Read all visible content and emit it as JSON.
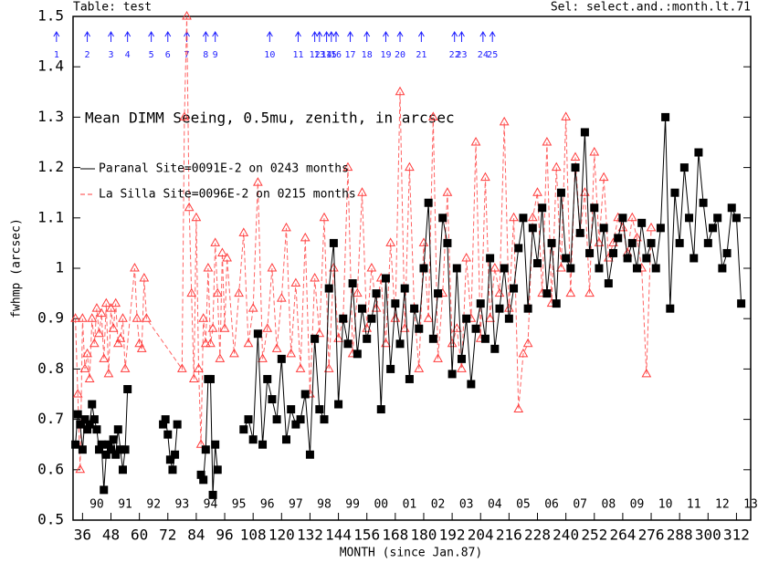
{
  "header": {
    "table": "Table: test",
    "selection": "Sel: select.and.:month.lt.71"
  },
  "chart_data": {
    "type": "line",
    "title": "Mean DIMM Seeing, 0.5mu, zenith, in arcsec",
    "x_label": "MONTH (since Jan.87)",
    "y_label": "fwhmp (arcsec)",
    "xlim": [
      32,
      318
    ],
    "ylim": [
      0.5,
      1.5
    ],
    "xticks": [
      36,
      48,
      60,
      72,
      84,
      96,
      108,
      120,
      132,
      144,
      156,
      168,
      180,
      192,
      204,
      216,
      228,
      240,
      252,
      264,
      276,
      288,
      300,
      312
    ],
    "yticks": [
      0.5,
      0.6,
      0.7,
      0.8,
      0.9,
      1,
      1.1,
      1.2,
      1.3,
      1.4,
      1.5
    ],
    "x2ticks": [
      {
        "value": 42,
        "label": "90"
      },
      {
        "value": 54,
        "label": "91"
      },
      {
        "value": 66,
        "label": "92"
      },
      {
        "value": 78,
        "label": "93"
      },
      {
        "value": 90,
        "label": "94"
      },
      {
        "value": 102,
        "label": "95"
      },
      {
        "value": 114,
        "label": "96"
      },
      {
        "value": 126,
        "label": "97"
      },
      {
        "value": 138,
        "label": "98"
      },
      {
        "value": 150,
        "label": "99"
      },
      {
        "value": 162,
        "label": "00"
      },
      {
        "value": 174,
        "label": "01"
      },
      {
        "value": 186,
        "label": "02"
      },
      {
        "value": 198,
        "label": "03"
      },
      {
        "value": 210,
        "label": "04"
      },
      {
        "value": 222,
        "label": "05"
      },
      {
        "value": 234,
        "label": "06"
      },
      {
        "value": 246,
        "label": "07"
      },
      {
        "value": 258,
        "label": "08"
      },
      {
        "value": 270,
        "label": "09"
      },
      {
        "value": 282,
        "label": "10"
      },
      {
        "value": 294,
        "label": "11"
      },
      {
        "value": 306,
        "label": "12"
      },
      {
        "value": 318,
        "label": "13"
      }
    ],
    "events": [
      {
        "label": "1",
        "x": 25
      },
      {
        "label": "2",
        "x": 38
      },
      {
        "label": "3",
        "x": 48
      },
      {
        "label": "4",
        "x": 55
      },
      {
        "label": "5",
        "x": 65
      },
      {
        "label": "6",
        "x": 72
      },
      {
        "label": "7",
        "x": 80
      },
      {
        "label": "8",
        "x": 88
      },
      {
        "label": "9",
        "x": 92
      },
      {
        "label": "10",
        "x": 115
      },
      {
        "label": "11",
        "x": 127
      },
      {
        "label": "12",
        "x": 134
      },
      {
        "label": "13",
        "x": 136
      },
      {
        "label": "14",
        "x": 139
      },
      {
        "label": "15",
        "x": 141
      },
      {
        "label": "16",
        "x": 143
      },
      {
        "label": "17",
        "x": 149
      },
      {
        "label": "18",
        "x": 156
      },
      {
        "label": "19",
        "x": 164
      },
      {
        "label": "20",
        "x": 170
      },
      {
        "label": "21",
        "x": 179
      },
      {
        "label": "22",
        "x": 193
      },
      {
        "label": "23",
        "x": 196
      },
      {
        "label": "24",
        "x": 205
      },
      {
        "label": "25",
        "x": 209
      }
    ],
    "series": [
      {
        "name": "Paranal Site=0091E-2 on 0243 months",
        "color": "#000000",
        "marker": "square",
        "dashed": false,
        "x": [
          33,
          34,
          35,
          36,
          37,
          38,
          39,
          40,
          41,
          42,
          43,
          44,
          45,
          46,
          47,
          48,
          49,
          50,
          51,
          52,
          53,
          54,
          55,
          60,
          70,
          71,
          72,
          73,
          74,
          75,
          76,
          80,
          86,
          87,
          88,
          89,
          90,
          91,
          92,
          93,
          98,
          104,
          106,
          108,
          110,
          112,
          114,
          116,
          118,
          120,
          122,
          124,
          126,
          128,
          130,
          132,
          134,
          136,
          138,
          140,
          142,
          144,
          146,
          148,
          150,
          152,
          154,
          156,
          158,
          160,
          162,
          164,
          166,
          168,
          170,
          172,
          174,
          176,
          178,
          180,
          182,
          184,
          186,
          188,
          190,
          192,
          194,
          196,
          198,
          200,
          202,
          204,
          206,
          208,
          210,
          212,
          214,
          216,
          218,
          220,
          222,
          224,
          226,
          228,
          230,
          232,
          234,
          236,
          238,
          240,
          242,
          244,
          246,
          248,
          250,
          252,
          254,
          256,
          258,
          260,
          262,
          264,
          266,
          268,
          270,
          272,
          274,
          276,
          278,
          280,
          282,
          284,
          286,
          288,
          290,
          292,
          294,
          296,
          298,
          300,
          302,
          304,
          306,
          308,
          310,
          312,
          314
        ],
        "values": [
          0.65,
          0.71,
          0.69,
          0.64,
          0.7,
          0.68,
          0.69,
          0.73,
          0.7,
          0.68,
          0.64,
          0.65,
          0.56,
          0.63,
          0.65,
          0.64,
          0.66,
          0.63,
          0.68,
          0.64,
          0.6,
          0.64,
          0.76,
          null,
          0.69,
          0.7,
          0.67,
          0.62,
          0.6,
          0.63,
          0.69,
          null,
          0.59,
          0.58,
          0.64,
          0.78,
          0.78,
          0.55,
          0.65,
          0.6,
          null,
          0.68,
          0.7,
          0.66,
          0.87,
          0.65,
          0.78,
          0.74,
          0.7,
          0.82,
          0.66,
          0.72,
          0.69,
          0.7,
          0.75,
          0.63,
          0.86,
          0.72,
          0.7,
          0.96,
          1.05,
          0.73,
          0.9,
          0.85,
          0.97,
          0.83,
          0.92,
          0.86,
          0.9,
          0.95,
          0.72,
          0.98,
          0.8,
          0.93,
          0.85,
          0.96,
          0.78,
          0.92,
          0.88,
          1.0,
          1.13,
          0.86,
          0.95,
          1.1,
          1.05,
          0.79,
          1.0,
          0.82,
          0.9,
          0.77,
          0.88,
          0.93,
          0.86,
          1.02,
          0.84,
          0.92,
          1.0,
          0.9,
          0.96,
          1.04,
          1.1,
          0.92,
          1.08,
          1.01,
          1.12,
          0.95,
          1.05,
          0.93,
          1.15,
          1.02,
          1.0,
          1.2,
          1.07,
          1.27,
          1.03,
          1.12,
          1.0,
          1.08,
          0.97,
          1.03,
          1.06,
          1.1,
          1.02,
          1.05,
          1.0,
          1.09,
          1.02,
          1.05,
          1.0,
          1.08,
          1.3,
          0.92,
          1.15,
          1.05,
          1.2,
          1.1,
          1.02,
          1.23,
          1.13,
          1.05,
          1.08,
          1.1,
          1.0,
          1.03,
          1.12,
          1.1,
          0.93
        ]
      },
      {
        "name": "La Silla Site=0096E-2 on 0215 months",
        "color": "#ff3c3c",
        "marker": "triangle",
        "dashed": true,
        "x": [
          33,
          34,
          35,
          36,
          37,
          38,
          39,
          40,
          41,
          42,
          43,
          44,
          45,
          46,
          47,
          48,
          49,
          50,
          51,
          52,
          53,
          54,
          58,
          59,
          60,
          61,
          62,
          63,
          78,
          79,
          80,
          81,
          82,
          83,
          84,
          85,
          86,
          87,
          88,
          89,
          90,
          91,
          92,
          93,
          94,
          95,
          96,
          97,
          100,
          102,
          104,
          106,
          108,
          110,
          112,
          114,
          116,
          118,
          120,
          122,
          124,
          126,
          128,
          130,
          132,
          134,
          136,
          138,
          140,
          142,
          144,
          146,
          148,
          150,
          152,
          154,
          156,
          158,
          160,
          162,
          164,
          166,
          168,
          170,
          172,
          174,
          176,
          178,
          180,
          182,
          184,
          186,
          188,
          190,
          192,
          194,
          196,
          198,
          200,
          202,
          204,
          206,
          208,
          210,
          212,
          214,
          216,
          218,
          220,
          222,
          224,
          226,
          228,
          230,
          232,
          234,
          236,
          238,
          240,
          242,
          244,
          246,
          248,
          250,
          252,
          254,
          256,
          258,
          260,
          262,
          264,
          266,
          268,
          270,
          272,
          274,
          276
        ],
        "values": [
          0.9,
          0.75,
          0.6,
          0.9,
          0.8,
          0.83,
          0.78,
          0.9,
          0.85,
          0.92,
          0.87,
          0.91,
          0.82,
          0.93,
          0.79,
          0.92,
          0.88,
          0.93,
          0.85,
          0.86,
          0.9,
          0.8,
          1.0,
          0.9,
          0.85,
          0.84,
          0.98,
          0.9,
          0.8,
          1.3,
          1.5,
          1.12,
          0.95,
          0.78,
          1.1,
          0.8,
          0.65,
          0.9,
          0.85,
          1.0,
          0.85,
          0.88,
          1.05,
          0.95,
          0.82,
          1.03,
          0.88,
          1.02,
          0.83,
          0.95,
          1.07,
          0.85,
          0.92,
          1.17,
          0.82,
          0.88,
          1.0,
          0.84,
          0.94,
          1.08,
          0.83,
          0.97,
          0.8,
          1.06,
          0.75,
          0.98,
          0.87,
          1.1,
          0.8,
          1.0,
          0.86,
          0.9,
          1.2,
          0.83,
          0.95,
          1.15,
          0.88,
          1.0,
          0.92,
          0.98,
          0.85,
          1.05,
          0.9,
          1.35,
          0.88,
          1.2,
          0.92,
          0.8,
          1.05,
          0.9,
          1.3,
          0.82,
          0.95,
          1.15,
          0.85,
          0.88,
          0.8,
          1.02,
          0.9,
          1.25,
          0.86,
          1.18,
          0.9,
          1.0,
          0.95,
          1.29,
          0.92,
          1.1,
          0.72,
          0.83,
          0.85,
          1.1,
          1.15,
          0.95,
          1.25,
          0.93,
          1.2,
          1.0,
          1.3,
          0.95,
          1.22,
          1.07,
          1.15,
          0.95,
          1.23,
          1.05,
          1.18,
          1.02,
          1.05,
          1.1,
          1.08,
          1.03,
          1.1,
          1.06,
          1.0,
          0.79,
          1.08
        ]
      }
    ],
    "event_color": "#2020ff"
  }
}
